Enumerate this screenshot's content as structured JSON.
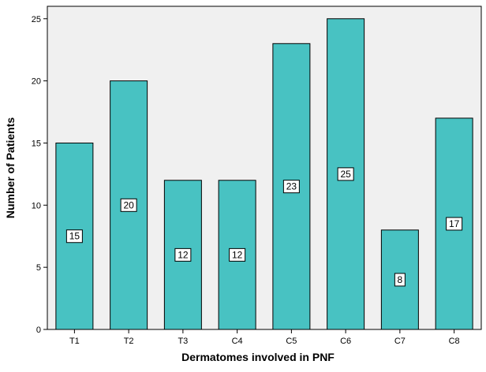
{
  "chart_data": {
    "type": "bar",
    "categories": [
      "T1",
      "T2",
      "T3",
      "C4",
      "C5",
      "C6",
      "C7",
      "C8"
    ],
    "values": [
      15,
      20,
      12,
      12,
      23,
      25,
      8,
      17
    ],
    "data_labels": [
      "15",
      "20",
      "12",
      "12",
      "23",
      "25",
      "8",
      "17"
    ],
    "xlabel": "Dermatomes involved in PNF",
    "ylabel": "Number of Patients",
    "ylim": [
      0,
      26
    ],
    "yticks": [
      0,
      5,
      10,
      15,
      20,
      25
    ],
    "grid": false,
    "legend": "none"
  },
  "colors": {
    "plot_background": "#f0f0f0",
    "bar_fill": "#48c2c2",
    "bar_stroke": "#000000",
    "label_box_fill": "#ffffff"
  }
}
